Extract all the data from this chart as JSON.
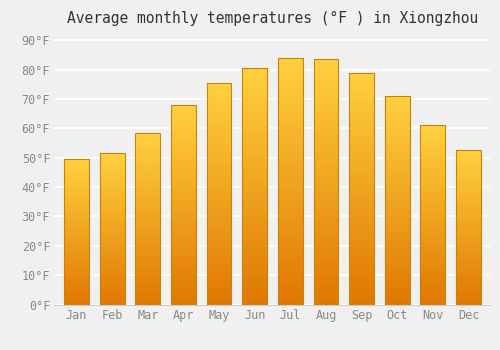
{
  "title": "Average monthly temperatures (°F ) in Xiongzhou",
  "months": [
    "Jan",
    "Feb",
    "Mar",
    "Apr",
    "May",
    "Jun",
    "Jul",
    "Aug",
    "Sep",
    "Oct",
    "Nov",
    "Dec"
  ],
  "values": [
    49.5,
    51.5,
    58.5,
    68,
    75.5,
    80.5,
    84,
    83.5,
    79,
    71,
    61,
    52.5
  ],
  "bar_color_bottom": "#E07800",
  "bar_color_top": "#FFD040",
  "bar_edge_color": "#C8820A",
  "yticks": [
    0,
    10,
    20,
    30,
    40,
    50,
    60,
    70,
    80,
    90
  ],
  "ytick_labels": [
    "0°F",
    "10°F",
    "20°F",
    "30°F",
    "40°F",
    "50°F",
    "60°F",
    "70°F",
    "80°F",
    "90°F"
  ],
  "ylim": [
    0,
    93
  ],
  "background_color": "#f0f0f0",
  "grid_color": "#ffffff",
  "title_fontsize": 10.5,
  "tick_fontsize": 8.5,
  "tick_color": "#888888",
  "bar_width": 0.7
}
